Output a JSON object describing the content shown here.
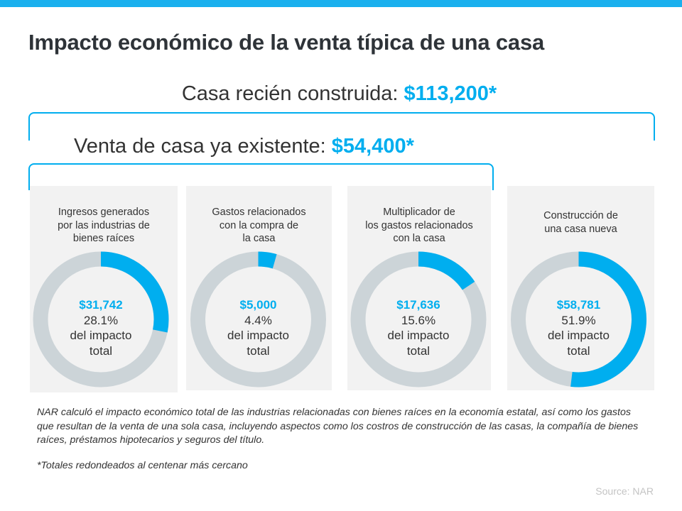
{
  "title": "Impacto económico de la venta típica de una casa",
  "new_home": {
    "label": "Casa recién construida:",
    "amount": "$113,200*"
  },
  "existing_home": {
    "label": "Venta de casa ya existente:",
    "amount": "$54,400*"
  },
  "colors": {
    "accent": "#00aeef",
    "ring": "#ccd4d8",
    "panel": "#f2f2f2"
  },
  "chart_data": [
    {
      "type": "pie",
      "style": "donut",
      "title": "Ingresos generados por las industrias de bienes raíces",
      "value_label": "$31,742",
      "percent_label": "28.1%",
      "percent": 28.1,
      "caption_1": "del impacto",
      "caption_2": "total",
      "title_lines": [
        "Ingresos generados",
        "por las industrias de",
        "bienes raíces"
      ]
    },
    {
      "type": "pie",
      "style": "donut",
      "title": "Gastos relacionados con la compra de la casa",
      "value_label": "$5,000",
      "percent_label": "4.4%",
      "percent": 4.4,
      "caption_1": "del impacto",
      "caption_2": "total",
      "title_lines": [
        "Gastos relacionados",
        "con la compra de",
        "la casa"
      ]
    },
    {
      "type": "pie",
      "style": "donut",
      "title": "Multiplicador de los gastos relacionados con la casa",
      "value_label": "$17,636",
      "percent_label": "15.6%",
      "percent": 15.6,
      "caption_1": "del impacto",
      "caption_2": "total",
      "title_lines": [
        "Multiplicador de",
        "los gastos relacionados",
        "con la casa"
      ]
    },
    {
      "type": "pie",
      "style": "donut",
      "title": "Construcción de una casa nueva",
      "value_label": "$58,781",
      "percent_label": "51.9%",
      "percent": 51.9,
      "caption_1": "del impacto",
      "caption_2": "total",
      "title_lines": [
        "Construcción de",
        "una casa nueva"
      ]
    }
  ],
  "note": "NAR calculó el impacto económico total de las industrias relacionadas con bienes raíces en la economía estatal, así como los gastos que resultan de la venta de una sola casa, incluyendo aspectos como los costros de construcción de las casas, la compañía de bienes raíces,  préstamos hipotecarios y seguros del título.",
  "footnote": "*Totales redondeados al centenar más cercano",
  "source": "Source: NAR"
}
